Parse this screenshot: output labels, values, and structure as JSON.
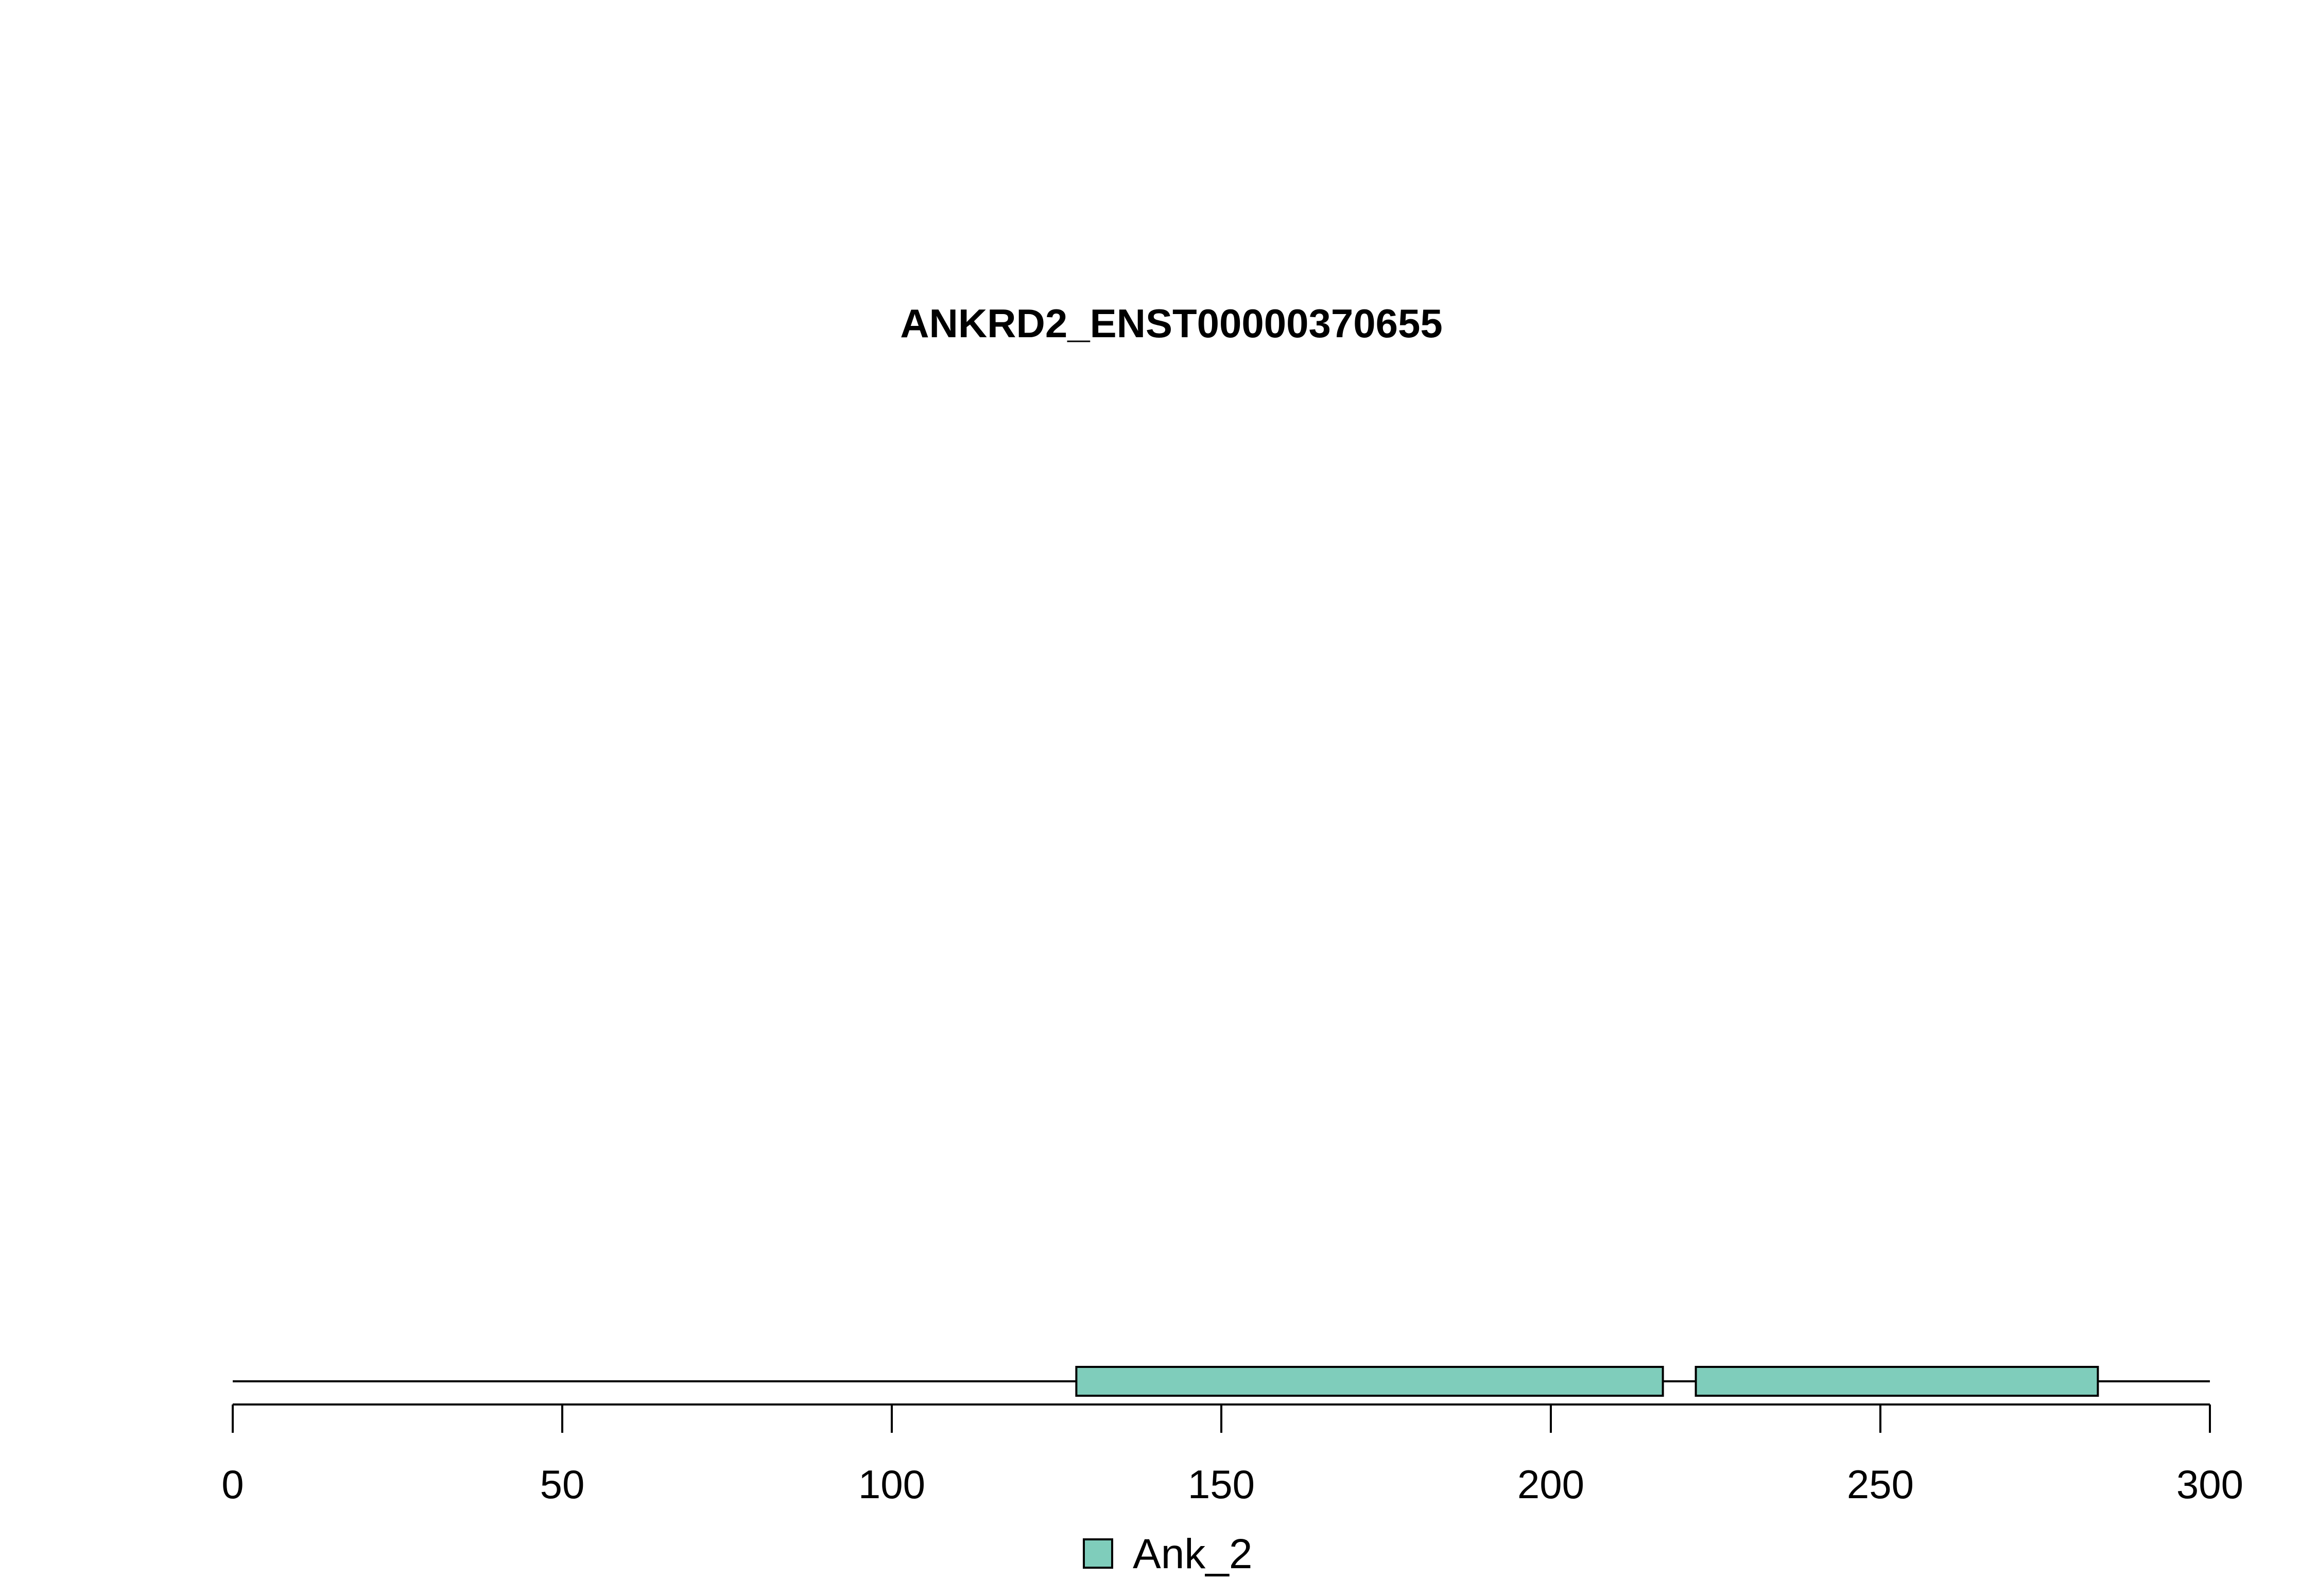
{
  "chart_data": {
    "type": "protein-domain-diagram",
    "title": "ANKRD2_ENST00000370655",
    "protein_length": 300,
    "xlim": [
      0,
      300
    ],
    "ticks": [
      0,
      50,
      100,
      150,
      200,
      250,
      300
    ],
    "tick_labels": [
      "0",
      "50",
      "100",
      "150",
      "200",
      "250",
      "300"
    ],
    "domains": [
      {
        "name": "Ank_2",
        "start": 128,
        "end": 217,
        "color": "#7fcdbb"
      },
      {
        "name": "Ank_2",
        "start": 222,
        "end": 283,
        "color": "#7fcdbb"
      }
    ],
    "legend": [
      {
        "label": "Ank_2",
        "color": "#7fcdbb"
      }
    ],
    "legend_placement": "bottom-center",
    "grid": false
  }
}
